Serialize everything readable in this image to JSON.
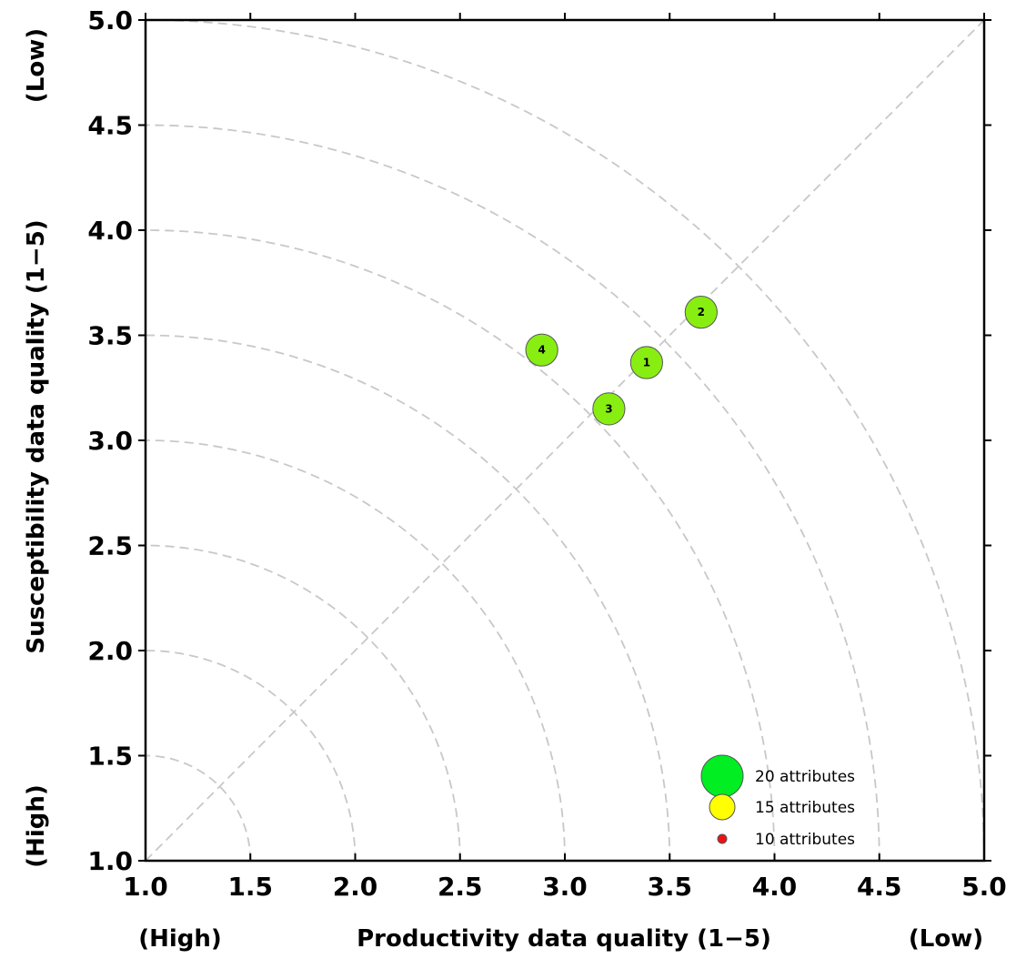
{
  "chart_data": {
    "type": "scatter",
    "title": "",
    "xlabel": "Productivity data quality (1−5)",
    "ylabel": "Susceptibility data quality (1−5)",
    "x_end_labels": {
      "low_end": "(High)",
      "high_end": "(Low)"
    },
    "y_end_labels": {
      "low_end": "(High)",
      "high_end": "(Low)"
    },
    "xlim": [
      1.0,
      5.0
    ],
    "ylim": [
      1.0,
      5.0
    ],
    "xticks": [
      "1.0",
      "1.5",
      "2.0",
      "2.5",
      "3.0",
      "3.5",
      "4.0",
      "4.5",
      "5.0"
    ],
    "yticks": [
      "1.0",
      "1.5",
      "2.0",
      "2.5",
      "3.0",
      "3.5",
      "4.0",
      "4.5",
      "5.0"
    ],
    "grid": "dashed quarter-circle arcs centered at (1,1) with radius 0.5 to 4.0, plus dashed 1:1 diagonal",
    "arc_radii": [
      0.5,
      1.0,
      1.5,
      2.0,
      2.5,
      3.0,
      3.5,
      4.0
    ],
    "points": [
      {
        "label": "1",
        "x": 3.39,
        "y": 3.37,
        "attributes": 17,
        "color": "#88ee11"
      },
      {
        "label": "2",
        "x": 3.65,
        "y": 3.61,
        "attributes": 17,
        "color": "#88ee11"
      },
      {
        "label": "3",
        "x": 3.21,
        "y": 3.15,
        "attributes": 17,
        "color": "#88ee11"
      },
      {
        "label": "4",
        "x": 2.89,
        "y": 3.43,
        "attributes": 17,
        "color": "#88ee11"
      }
    ],
    "legend": {
      "placement": "bottom-right",
      "entries": [
        {
          "label": "20 attributes",
          "attributes": 20,
          "color": "#00ee22"
        },
        {
          "label": "15 attributes",
          "attributes": 15,
          "color": "#ffff00"
        },
        {
          "label": "10 attributes",
          "attributes": 10,
          "color": "#ee1111"
        }
      ]
    }
  }
}
